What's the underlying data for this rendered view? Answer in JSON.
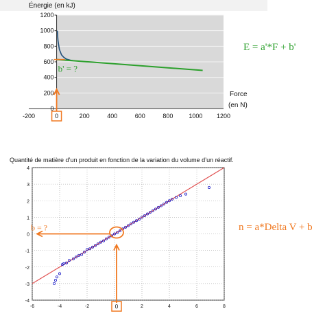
{
  "chart_data": [
    {
      "type": "line",
      "title": "Énergie (en kJ)",
      "ylabel": "Énergie (en kJ)",
      "xlabel": "Force (en N)",
      "xlabel_lines": [
        "Force",
        "(en N)"
      ],
      "xlim": [
        -200,
        1200
      ],
      "ylim": [
        0,
        1200
      ],
      "x_ticks": [
        -200,
        0,
        200,
        400,
        600,
        800,
        1000,
        1200
      ],
      "y_ticks": [
        0,
        200,
        400,
        600,
        800,
        1000,
        1200
      ],
      "grid": true,
      "series": [
        {
          "color": "#1f4e79",
          "x": [
            5,
            10,
            20,
            35,
            50,
            70,
            100,
            130
          ],
          "y": [
            1000,
            870,
            760,
            690,
            660,
            635,
            620,
            612
          ]
        },
        {
          "color": "#2ca02c",
          "x": [
            0,
            1050
          ],
          "y": [
            630,
            490
          ]
        }
      ],
      "annotations": {
        "equation": "E = a'*F + b'",
        "intercept_label": "b' = ?",
        "origin_label": "0"
      },
      "colors": {
        "annotation": "#f07820",
        "equation": "#2ca02c"
      }
    },
    {
      "type": "scatter",
      "title": "Quantité de matière d’un produit en fonction de la variation du volume d’un réactif.",
      "xlim": [
        -6,
        8
      ],
      "ylim": [
        -4,
        4
      ],
      "x_ticks": [
        -6,
        -4,
        -2,
        0,
        2,
        4,
        6,
        8
      ],
      "y_ticks": [
        -4,
        -3,
        -2,
        -1,
        0,
        1,
        2,
        3,
        4
      ],
      "grid": true,
      "fit_line": {
        "slope": 0.5,
        "intercept": 0.0,
        "color": "#e05050"
      },
      "series": [
        {
          "color": "#2020c8",
          "x": [
            -4.4,
            -4.3,
            -4.2,
            -4.0,
            -3.8,
            -3.7,
            -3.5,
            -3.3,
            -3.0,
            -2.8,
            -2.6,
            -2.4,
            -2.2,
            -2.0,
            -1.8,
            -1.6,
            -1.4,
            -1.2,
            -1.0,
            -0.8,
            -0.6,
            -0.4,
            -0.2,
            0.0,
            0.2,
            0.4,
            0.6,
            0.8,
            1.0,
            1.2,
            1.4,
            1.6,
            1.8,
            2.0,
            2.2,
            2.4,
            2.6,
            2.8,
            3.0,
            3.2,
            3.4,
            3.6,
            3.8,
            4.0,
            4.2,
            4.5,
            4.8,
            5.2,
            6.9
          ],
          "y": [
            -3.0,
            -2.8,
            -2.6,
            -2.4,
            -1.85,
            -1.8,
            -1.75,
            -1.6,
            -1.5,
            -1.4,
            -1.3,
            -1.25,
            -1.1,
            -0.95,
            -0.9,
            -0.8,
            -0.7,
            -0.6,
            -0.5,
            -0.42,
            -0.3,
            -0.2,
            -0.12,
            0.0,
            0.08,
            0.18,
            0.3,
            0.4,
            0.5,
            0.6,
            0.7,
            0.8,
            0.88,
            1.0,
            1.1,
            1.2,
            1.3,
            1.4,
            1.5,
            1.6,
            1.7,
            1.8,
            1.9,
            2.0,
            2.1,
            2.2,
            2.3,
            2.4,
            2.8
          ]
        }
      ],
      "annotations": {
        "equation": "n = a*Delta V + b",
        "intercept_label": "b = ?",
        "origin_label": "0"
      },
      "colors": {
        "annotation": "#f07820"
      }
    }
  ]
}
